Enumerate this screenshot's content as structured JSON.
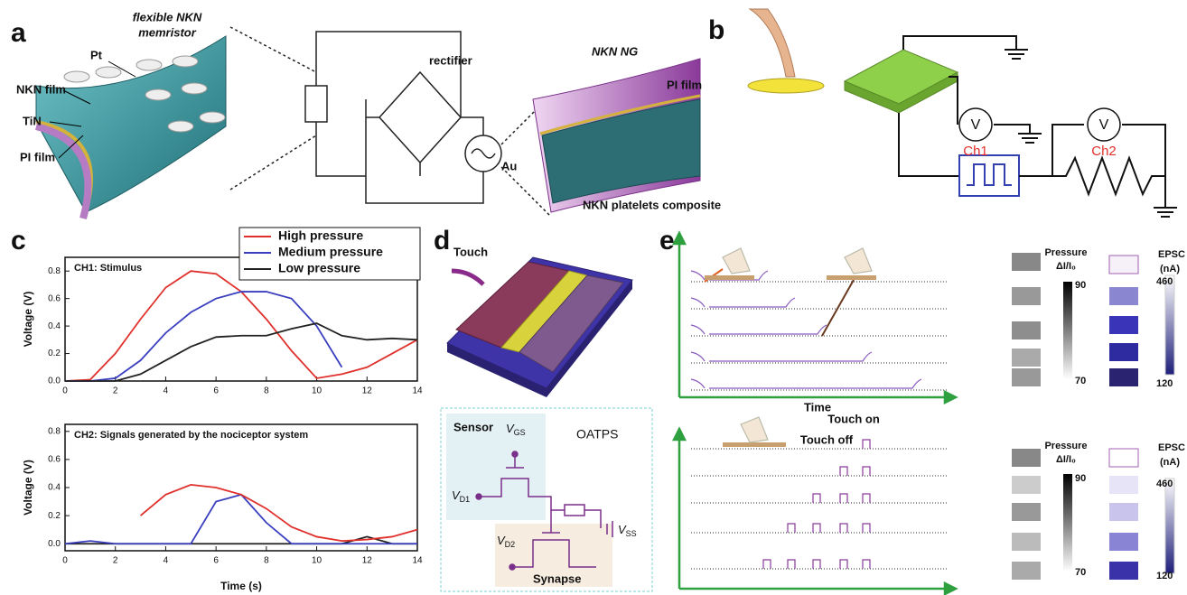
{
  "panels": {
    "a": {
      "label": "a",
      "memristor_title": [
        "flexible NKN",
        "memristor"
      ],
      "pt": "Pt",
      "nkn_film": "NKN film",
      "tin": "TiN",
      "pi_film": "PI film",
      "rectifier": "rectifier",
      "ng_title": "NKN NG",
      "ng_pi_film": "PI film",
      "au": "Au",
      "composite": "NKN platelets composite"
    },
    "b": {
      "label": "b",
      "meter_1": "V",
      "channel_1": "Ch1",
      "meter_2": "V",
      "channel_2": "Ch2"
    },
    "c": {
      "label": "c"
    },
    "d": {
      "label": "d",
      "touch": "Touch",
      "sensor": "Sensor",
      "v_gs": {
        "symbol": "V",
        "subscript": "GS"
      },
      "oatps": "OATPS",
      "v_d1": {
        "symbol": "V",
        "subscript": "D1"
      },
      "v_ss": {
        "symbol": "V",
        "subscript": "SS"
      },
      "v_d2": {
        "symbol": "V",
        "subscript": "D2"
      },
      "synapse": "Synapse"
    },
    "e": {
      "label": "e",
      "time": "Time",
      "top": {
        "pressure_title": "Pressure",
        "pressure_ratio": "ΔI/I₀",
        "pressure_max": "90",
        "pressure_min": "70",
        "epsc_title": "EPSC",
        "epsc_unit": "(nA)",
        "epsc_max": "460",
        "epsc_min": "120"
      },
      "bottom": {
        "touch_on": "Touch on",
        "touch_off": "Touch off",
        "pressure_title": "Pressure",
        "pressure_ratio": "ΔI/I₀",
        "pressure_max": "90",
        "pressure_min": "70",
        "epsc_title": "EPSC",
        "epsc_unit": "(nA)",
        "epsc_max": "460",
        "epsc_min": "120"
      }
    }
  },
  "chart_data": [
    {
      "type": "line",
      "annotation": "CH1: Stimulus",
      "y_label": "Voltage (V)",
      "legend": true,
      "x": [
        0,
        1,
        2,
        3,
        4,
        5,
        6,
        7,
        8,
        9,
        10,
        11,
        12,
        13,
        14
      ],
      "series": [
        {
          "name": "High pressure",
          "color": "#e0302c",
          "values": [
            0,
            0.01,
            0.2,
            0.45,
            0.68,
            0.8,
            0.78,
            0.65,
            0.45,
            0.22,
            0.02,
            0.05,
            0.1,
            0.2,
            0.3
          ]
        },
        {
          "name": "Medium pressure",
          "color": "#3a3fbf",
          "values": [
            0,
            0,
            0.02,
            0.15,
            0.35,
            0.5,
            0.6,
            0.65,
            0.65,
            0.6,
            0.4,
            0.1,
            null,
            null,
            null
          ]
        },
        {
          "name": "Low pressure",
          "color": "#222222",
          "values": [
            0,
            0,
            0,
            0.05,
            0.15,
            0.25,
            0.32,
            0.33,
            0.33,
            0.38,
            0.42,
            0.33,
            0.3,
            0.31,
            0.3
          ]
        }
      ],
      "xlim": [
        0,
        14
      ],
      "ylim": [
        0,
        0.9
      ],
      "xticks": [
        0,
        2,
        4,
        6,
        8,
        10,
        12,
        14
      ],
      "yticks": [
        {
          "value": 0,
          "label": "0.0"
        },
        0.2,
        0.4,
        0.6,
        0.8
      ]
    },
    {
      "type": "line",
      "annotation": "CH2: Signals generated by the nociceptor system",
      "y_label": "Voltage (V)",
      "x_label": "Time (s)",
      "x": [
        0,
        1,
        2,
        3,
        4,
        5,
        6,
        7,
        8,
        9,
        10,
        11,
        12,
        13,
        14
      ],
      "series": [
        {
          "color": "#222222",
          "values": [
            0,
            0,
            0,
            0,
            0,
            0,
            0,
            0,
            0,
            0,
            0,
            0,
            0.05,
            0,
            0
          ]
        },
        {
          "color": "#3a3fbf",
          "values": [
            0,
            0.02,
            0,
            0,
            0,
            0,
            0.3,
            0.35,
            0.15,
            0,
            0,
            0,
            0,
            0,
            0
          ]
        },
        {
          "color": "#e0302c",
          "values": [
            null,
            null,
            null,
            0.2,
            0.35,
            0.42,
            0.4,
            0.35,
            0.25,
            0.12,
            0.05,
            0.02,
            0.03,
            0.05,
            0.1
          ]
        }
      ],
      "xlim": [
        0,
        14
      ],
      "ylim": [
        -0.05,
        0.85
      ],
      "xticks": [
        0,
        2,
        4,
        6,
        8,
        10,
        12,
        14
      ],
      "yticks": [
        {
          "value": 0,
          "label": "0.0"
        },
        0.2,
        0.4,
        0.6,
        0.8
      ]
    }
  ]
}
